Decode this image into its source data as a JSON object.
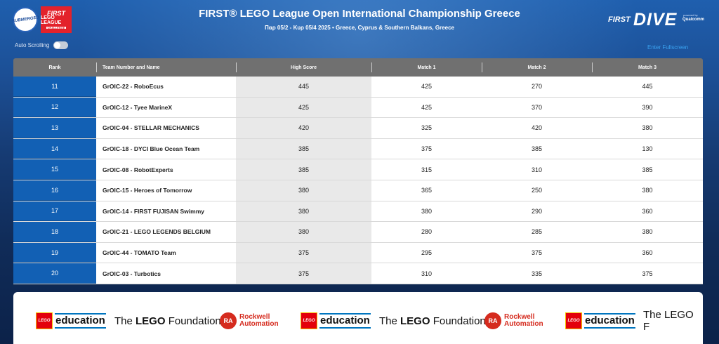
{
  "header": {
    "sub_logo_text": "SUBMERGED",
    "fll_logo": [
      "FIRST",
      "LEGO LEAGUE",
      "CHALLENGE"
    ],
    "title": "FIRST® LEGO League Open International Championship Greece",
    "subtitle": "Παρ 05/2 - Κυρ 05/4 2025 • Greece, Cyprus & Southern Balkans, Greece",
    "brand_first": "FIRST",
    "brand_dive": "DIVE",
    "brand_powered": "powered by",
    "brand_qualcomm": "Qualcomm"
  },
  "controls": {
    "auto_scrolling_label": "Auto Scrolling",
    "auto_scrolling_on": false,
    "fullscreen_label": "Enter Fullscreen"
  },
  "table": {
    "columns": [
      "Rank",
      "Team Number and Name",
      "High Score",
      "Match 1",
      "Match 2",
      "Match 3"
    ],
    "rows": [
      {
        "rank": "11",
        "team": "GrOIC-22 - RoboEcus",
        "high": "445",
        "m1": "425",
        "m2": "270",
        "m3": "445"
      },
      {
        "rank": "12",
        "team": "GrOIC-12 - Tyee MarineX",
        "high": "425",
        "m1": "425",
        "m2": "370",
        "m3": "390"
      },
      {
        "rank": "13",
        "team": "GrOIC-04 - STELLAR MECHANICS",
        "high": "420",
        "m1": "325",
        "m2": "420",
        "m3": "380"
      },
      {
        "rank": "14",
        "team": "GrOIC-18 - DYCI Blue Ocean Team",
        "high": "385",
        "m1": "375",
        "m2": "385",
        "m3": "130"
      },
      {
        "rank": "15",
        "team": "GrOIC-08 - RobotExperts",
        "high": "385",
        "m1": "315",
        "m2": "310",
        "m3": "385"
      },
      {
        "rank": "16",
        "team": "GrOIC-15 - Heroes of Tomorrow",
        "high": "380",
        "m1": "365",
        "m2": "250",
        "m3": "380"
      },
      {
        "rank": "17",
        "team": "GrOIC-14 - FIRST FUJISAN Swimmy",
        "high": "380",
        "m1": "380",
        "m2": "290",
        "m3": "360"
      },
      {
        "rank": "18",
        "team": "GrOIC-21 - LEGO LEGENDS BELGIUM",
        "high": "380",
        "m1": "280",
        "m2": "285",
        "m3": "380"
      },
      {
        "rank": "19",
        "team": "GrOIC-44 - TOMATO Team",
        "high": "375",
        "m1": "295",
        "m2": "375",
        "m3": "360"
      },
      {
        "rank": "20",
        "team": "GrOIC-03 - Turbotics",
        "high": "375",
        "m1": "310",
        "m2": "335",
        "m3": "375"
      }
    ]
  },
  "sponsors": {
    "lego_badge": "LEGO",
    "education": "education",
    "foundation_pre": "The ",
    "foundation_bold": "LEGO",
    "foundation_post": " Foundation",
    "foundation_cut": "The LEGO F",
    "ra_badge": "RA",
    "rockwell_1": "Rockwell",
    "rockwell_2": "Automation"
  },
  "colors": {
    "rank_blue": "#1260b4",
    "header_gray": "#707070",
    "lego_red": "#e3000b",
    "rockwell_red": "#d52b1e"
  }
}
